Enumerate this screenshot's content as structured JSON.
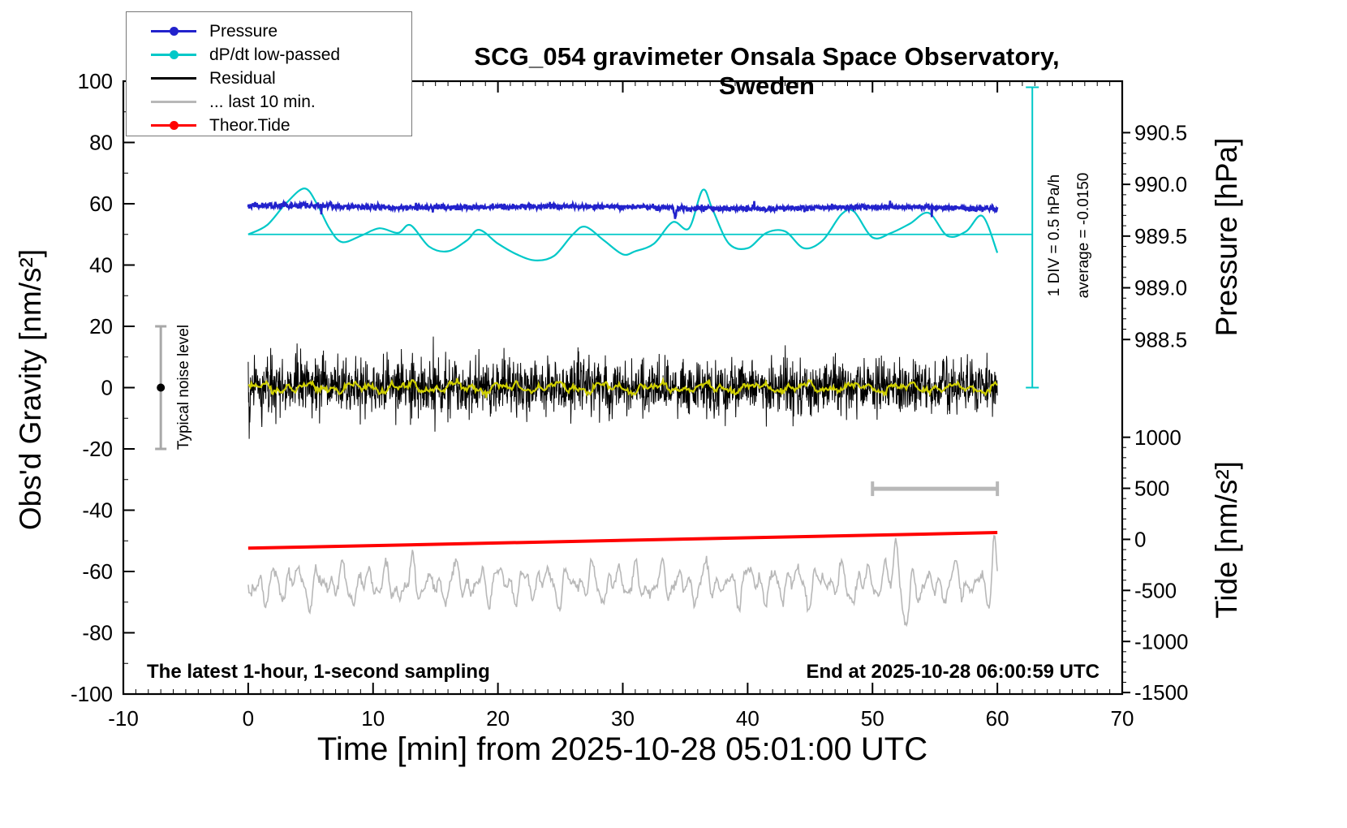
{
  "chart": {
    "title": "SCG_054 gravimeter Onsala Space Observatory, Sweden",
    "xlabel": "Time [min] from 2025-10-28 05:01:00 UTC",
    "ylabel_left": "Obs'd Gravity [nm/s²]",
    "ylabel_pressure": "Pressure [hPa]",
    "ylabel_tide": "Tide [nm/s²]",
    "footnote_left": "The latest 1-hour, 1-second sampling",
    "footnote_right": "End at 2025-10-28 06:00:59 UTC",
    "annotations": {
      "noise_label": "Typical noise level",
      "div_label": "1 DIV = 0.5 hPa/h",
      "average_label": "average = -0.0150"
    },
    "legend": [
      {
        "label": "Pressure",
        "color": "#2222cc",
        "marker": "dot"
      },
      {
        "label": "dP/dt low-passed",
        "color": "#00c8c8",
        "marker": "dot"
      },
      {
        "label": "Residual",
        "color": "#000000",
        "marker": "line"
      },
      {
        "label": "... last 10 min.",
        "color": "#b8b8b8",
        "marker": "line"
      },
      {
        "label": "Theor.Tide",
        "color": "#ff0000",
        "marker": "dot"
      }
    ]
  },
  "chart_data": {
    "type": "line",
    "title": "SCG_054 gravimeter Onsala Space Observatory, Sweden",
    "xlim": [
      -10,
      70
    ],
    "ylim_left": [
      -100,
      100
    ],
    "x_ticks": [
      -10,
      0,
      10,
      20,
      30,
      40,
      50,
      60,
      70
    ],
    "x_major_step": 10,
    "x_minor_step": 1,
    "y_ticks": [
      -100,
      -80,
      -60,
      -40,
      -20,
      0,
      20,
      40,
      60,
      80,
      100
    ],
    "y_major_step": 20,
    "y_minor_step": 10,
    "pressure_axis": {
      "label": "Pressure [hPa]",
      "ticks": [
        988.5,
        989.0,
        989.5,
        990.0,
        990.5
      ],
      "minor_step": 0.1,
      "gravity_at_min_tick": 15.7,
      "gravity_per_hpa": 33.75
    },
    "tide_axis": {
      "label": "Tide [nm/s²]",
      "ticks": [
        -1500,
        -1000,
        -500,
        0,
        500,
        1000
      ],
      "minor_step": 100,
      "gravity_at_min_tick": -99.5,
      "gravity_per_unit": 0.03332
    },
    "reference_line": {
      "series": "dP/dt low-passed",
      "gravity_level": 50,
      "t_range": [
        0,
        62.8
      ],
      "color": "#00c8c8"
    },
    "div_scale_bar": {
      "t": 62.8,
      "gravity_range": [
        0,
        98
      ],
      "color": "#00c8c8",
      "label": "1 DIV = 0.5 hPa/h",
      "average": "-0.0150"
    },
    "noise_bar": {
      "t": -7,
      "gravity_range": [
        -20,
        20
      ],
      "dot_gravity": 0,
      "color": "#a8a8a8",
      "label": "Typical noise level"
    },
    "last10_window_bar": {
      "t_range": [
        50,
        60
      ],
      "gravity": -33,
      "color": "#b8b8b8"
    },
    "series": [
      {
        "name": "... last 10 min.",
        "color": "#b8b8b8",
        "width": 1.6,
        "render": "noise",
        "t_range": [
          0,
          60
        ],
        "n": 900,
        "seed": 47,
        "base": -64,
        "jitter": 0.8,
        "sines": [
          [
            3.5,
            0.55,
            0.7
          ],
          [
            2.8,
            0.9,
            2.4
          ],
          [
            2.0,
            1.4,
            4.9
          ],
          [
            1.4,
            0.3,
            1.3
          ]
        ],
        "bumps": [
          [
            16,
            51.9,
            0.35
          ],
          [
            -13,
            52.7,
            0.45
          ],
          [
            12,
            59.75,
            0.2
          ],
          [
            -7,
            0.2,
            0.3
          ]
        ],
        "note": "residual of the last 10 minutes, approx -465 ±250 on tide axis"
      },
      {
        "name": "Residual",
        "color": "#000000",
        "width": 1,
        "render": "noise",
        "t_range": [
          0,
          60
        ],
        "n": 2300,
        "seed": 23,
        "base": 0,
        "jitter": 4.4,
        "spike_prob": 0.02,
        "spike_amp": 6,
        "clamp": 19,
        "bumps": [
          [
            -16,
            0.1,
            0.05
          ]
        ]
      },
      {
        "name": "Residual low-passed (yellow)",
        "color": "#cfcf00",
        "width": 2.2,
        "render": "noise",
        "t_range": [
          0,
          60
        ],
        "n": 700,
        "seed": 31,
        "base": 0,
        "jitter": 0.45,
        "sines": [
          [
            1.0,
            0.25,
            0.5
          ],
          [
            0.7,
            0.6,
            2.2
          ],
          [
            0.5,
            1.1,
            4.1
          ]
        ]
      },
      {
        "name": "dP/dt low-passed",
        "color": "#00c8c8",
        "width": 2.2,
        "render": "smooth",
        "t": [
          0,
          1.5,
          3,
          4.5,
          5.5,
          6.5,
          7.5,
          9,
          10.5,
          12,
          13,
          14.5,
          16,
          17.5,
          18.5,
          20,
          21.5,
          23,
          24.5,
          26,
          27,
          28.5,
          30,
          31,
          32.5,
          34,
          35.3,
          36.4,
          37.2,
          38.5,
          40,
          41.5,
          43,
          44.5,
          46,
          47.5,
          48.5,
          50,
          51.5,
          53,
          54.5,
          56,
          57.5,
          58.8,
          60
        ],
        "g": [
          50,
          53,
          60,
          65,
          60,
          52,
          47.5,
          49.5,
          52,
          50.5,
          53,
          46,
          44.5,
          48,
          51.5,
          47,
          43.5,
          41.5,
          43,
          50,
          52.5,
          48,
          43.5,
          44.5,
          47,
          54,
          52,
          64.5,
          58,
          47,
          45.5,
          50.5,
          51,
          45.5,
          48,
          56.5,
          57.5,
          49,
          50.5,
          53.5,
          57,
          49.5,
          51,
          56,
          44
        ],
        "note": "units hPa/h, 1 DIV (10 gravity units) = 0.5 hPa/h, average = -0.0150"
      },
      {
        "name": "Pressure",
        "color": "#2222cc",
        "width": 2.6,
        "render": "noise",
        "t_range": [
          0,
          60
        ],
        "n": 1600,
        "seed": 11,
        "base": 59.2,
        "trend": -0.012,
        "jitter": 0.45,
        "sines": [
          [
            0.3,
            0.04,
            1.2
          ]
        ],
        "bumps": [
          [
            -3.2,
            34.2,
            0.12
          ]
        ],
        "spike_prob": 0.006,
        "spike_amp": 1.4,
        "note": "approx 989.8 hPa on pressure axis, slowly decreasing"
      },
      {
        "name": "Theor.Tide",
        "color": "#ff0000",
        "width": 4,
        "render": "linear",
        "t": [
          0,
          60
        ],
        "g": [
          -52.4,
          -47.3
        ],
        "note": "approx -83 to +70 nm/s² on tide axis"
      }
    ]
  }
}
